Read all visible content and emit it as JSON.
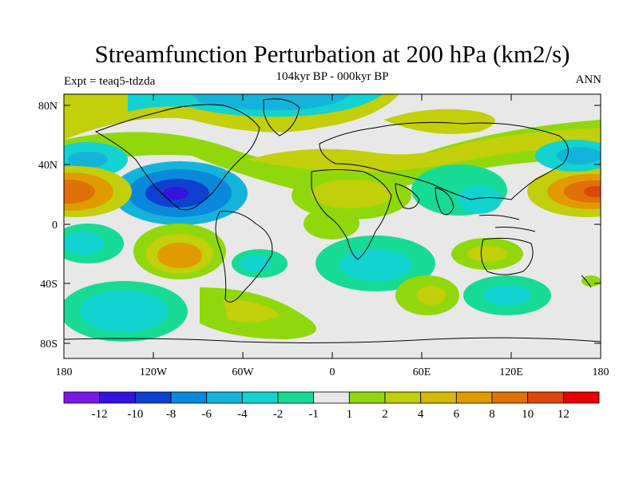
{
  "title": "Streamfunction Perturbation at 200 hPa (km2/s)",
  "subtitle": "104kyr BP - 000kyr BP",
  "experiment": "Expt = teaq5-tdzda",
  "season": "ANN",
  "colors": {
    "neg12": "#7a1ae6",
    "neg10": "#3512dd",
    "neg8": "#1040cf",
    "neg6": "#0a88dc",
    "neg4": "#14b4da",
    "neg2": "#12d3d0",
    "neg1": "#17db94",
    "zero": "#e8e8e8",
    "pos1": "#90d80c",
    "pos2": "#c2cf0a",
    "pos4": "#d4b906",
    "pos6": "#e09b00",
    "pos8": "#e07008",
    "pos10": "#e0450e",
    "pos12": "#e01e0c",
    "high": "#e60000"
  },
  "lat_labels": [
    "80N",
    "40N",
    "0",
    "40S",
    "80S"
  ],
  "lon_labels": [
    "180",
    "120W",
    "60W",
    "0",
    "60E",
    "120E",
    "180"
  ],
  "colorbar": {
    "labels": [
      "-12",
      "-10",
      "-8",
      "-6",
      "-4",
      "-2",
      "-1",
      "1",
      "2",
      "4",
      "6",
      "8",
      "10",
      "12"
    ],
    "colors": [
      "#7a1ae6",
      "#3512dd",
      "#1040cf",
      "#0a88dc",
      "#14b4da",
      "#12d3d0",
      "#17db94",
      "#e8e8e8",
      "#90d80c",
      "#c2cf0a",
      "#d4b906",
      "#e09b00",
      "#e07008",
      "#e0450e",
      "#e60000"
    ]
  }
}
